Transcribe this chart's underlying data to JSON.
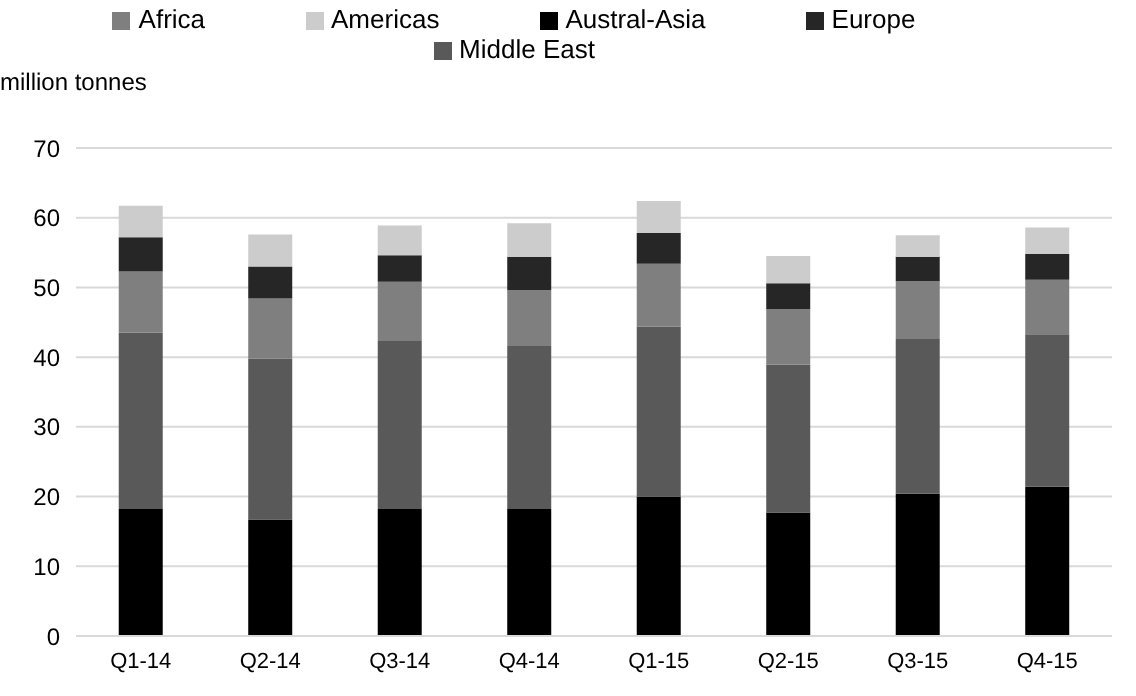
{
  "chart_data": {
    "type": "bar",
    "stacked": true,
    "ylabel": "million tonnes",
    "categories": [
      "Q1-14",
      "Q2-14",
      "Q3-14",
      "Q4-14",
      "Q1-15",
      "Q2-15",
      "Q3-15",
      "Q4-15"
    ],
    "series": [
      {
        "name": "Austral-Asia",
        "color": "#000000",
        "values": [
          18.2,
          16.7,
          18.2,
          18.2,
          20.0,
          17.7,
          20.4,
          21.4
        ]
      },
      {
        "name": "Middle East",
        "color": "#595959",
        "values": [
          25.3,
          23.1,
          24.1,
          23.4,
          24.4,
          21.2,
          22.2,
          21.9
        ]
      },
      {
        "name": "Africa",
        "color": "#7f7f7f",
        "values": [
          8.8,
          8.6,
          8.5,
          8.0,
          9.0,
          8.0,
          8.3,
          7.8
        ]
      },
      {
        "name": "Europe",
        "color": "#262626",
        "values": [
          4.9,
          4.6,
          3.8,
          4.8,
          4.4,
          3.7,
          3.5,
          3.7
        ]
      },
      {
        "name": "Americas",
        "color": "#cccccc",
        "values": [
          4.5,
          4.6,
          4.3,
          4.8,
          4.6,
          3.9,
          3.1,
          3.8
        ]
      }
    ],
    "ylim": [
      0,
      70
    ],
    "yticks": [
      0,
      10,
      20,
      30,
      40,
      50,
      60,
      70
    ],
    "grid": "y",
    "legend": "top"
  }
}
